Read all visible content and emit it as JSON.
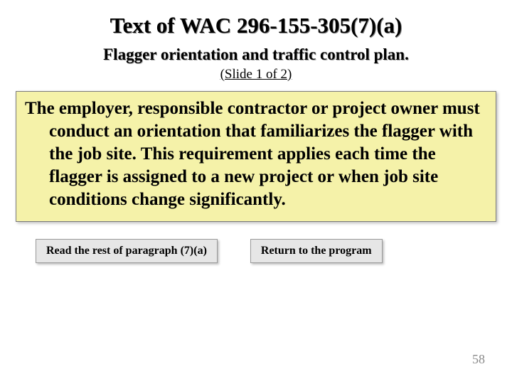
{
  "header": {
    "title": "Text of WAC 296-155-305(7)(a)",
    "subtitle": "Flagger orientation and traffic control plan.",
    "slide_note": "(Slide 1 of 2)"
  },
  "body": {
    "text": "The employer, responsible contractor or project owner must conduct an orientation that familiarizes the flagger with the job site.  This requirement applies each time the flagger is assigned to a new project or when job site conditions change significantly.",
    "background_color": "#f5f2a9",
    "border_color": "#7a7a7a"
  },
  "buttons": {
    "read_rest": "Read the rest of paragraph (7)(a)",
    "return_program": "Return to the program"
  },
  "page_number": "58",
  "colors": {
    "page_bg": "#ffffff",
    "button_bg": "#e6e6e6",
    "page_num_color": "#8a8a8a"
  }
}
